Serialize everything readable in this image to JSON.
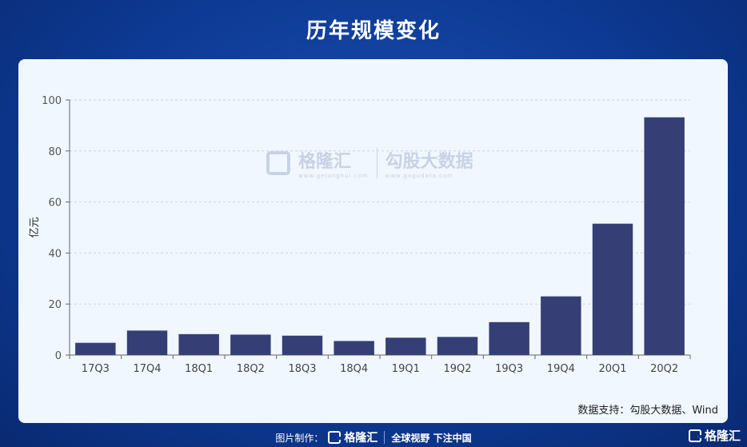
{
  "header": {
    "title": "历年规模变化"
  },
  "watermark": {
    "brand1": "格隆汇",
    "url1": "www.gelonghui.com",
    "brand2": "勾股大数据",
    "url2": "www.gogudata.com"
  },
  "source": "数据支持：勾股大数据、Wind",
  "footer": {
    "made_by": "图片制作：",
    "logo": "格隆汇",
    "slogan": "全球视野 下注中国",
    "corner_logo": "格隆汇"
  },
  "colors": {
    "bar": "#353f75",
    "background": "#0d3a94",
    "card": "#f0f7fe"
  },
  "chart_data": {
    "type": "bar",
    "categories": [
      "17Q3",
      "17Q4",
      "18Q1",
      "18Q2",
      "18Q3",
      "18Q4",
      "19Q1",
      "19Q2",
      "19Q3",
      "19Q4",
      "20Q1",
      "20Q2"
    ],
    "values": [
      4.8,
      9.6,
      8.2,
      8.0,
      7.6,
      5.5,
      6.8,
      7.1,
      12.9,
      23.0,
      51.5,
      93.2
    ],
    "ylabel": "亿元",
    "ylim": [
      0,
      100
    ],
    "yticks": [
      0,
      20,
      40,
      60,
      80,
      100
    ],
    "grid": true
  }
}
